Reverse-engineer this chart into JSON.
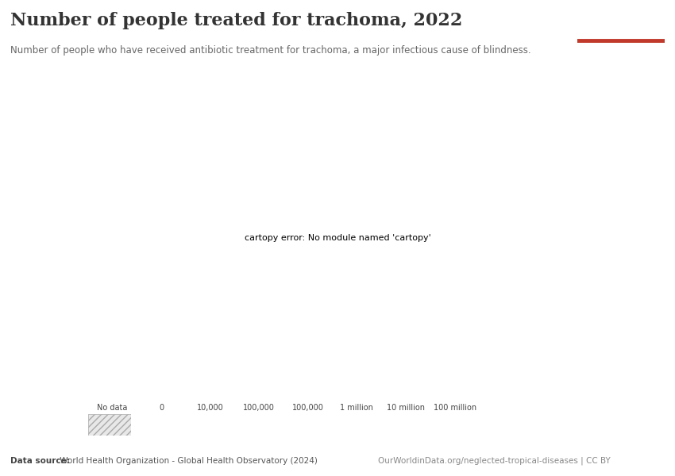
{
  "title": "Number of people treated for trachoma, 2022",
  "subtitle": "Number of people who have received antibiotic treatment for trachoma, a major infectious cause of blindness.",
  "datasource_bold": "Data source:",
  "datasource_rest": " World Health Organization - Global Health Observatory (2024)",
  "url": "OurWorldinData.org/neglected-tropical-diseases | CC BY",
  "owid_box_color": "#1a3a5c",
  "owid_box_red": "#c0392b",
  "background_color": "#ffffff",
  "colorbar_labels": [
    "No data",
    "0",
    "10,000",
    "100,000",
    "100,000",
    "1 million",
    "10 million",
    "100 million"
  ],
  "colorbar_colors": [
    "#d3d3d3",
    "#f7fbce",
    "#d4ebb8",
    "#98d4c4",
    "#5bbcbe",
    "#3a90b5",
    "#25618f",
    "#15325e"
  ],
  "hatch_pattern": "////",
  "no_data_facecolor": "#e8e8e8",
  "no_data_edgecolor": "#bbbbbb",
  "ocean_color": "#ffffff",
  "land_edge_color": "#bbbbbb",
  "land_edge_width": 0.3,
  "country_colors": {
    "Ethiopia": "#15325e",
    "Chad": "#25618f",
    "Nigeria": "#25618f",
    "Niger": "#3a90b5",
    "Mali": "#3a90b5",
    "Sudan": "#3a90b5",
    "Burkina Faso": "#5bbcbe",
    "Tanzania": "#25618f",
    "Kenya": "#3a90b5",
    "Uganda": "#3a90b5",
    "Malawi": "#5bbcbe",
    "Mozambique": "#3a90b5",
    "Zambia": "#5bbcbe",
    "Guinea": "#5bbcbe",
    "Ghana": "#98d4c4",
    "Cameroon": "#5bbcbe",
    "Central African Rep.": "#98d4c4",
    "S. Sudan": "#5bbcbe",
    "Eritrea": "#5bbcbe",
    "Djibouti": "#98d4c4",
    "Yemen": "#5bbcbe",
    "Laos": "#98d4c4",
    "Myanmar": "#98d4c4",
    "Dem. Rep. Congo": "#3a90b5",
    "Angola": "#98d4c4",
    "Zimbabwe": "#98d4c4",
    "Benin": "#5bbcbe",
    "Senegal": "#5bbcbe",
    "Gambia": "#98d4c4",
    "Liberia": "#98d4c4",
    "Sierra Leone": "#98d4c4",
    "Togo": "#98d4c4",
    "Comoros": "#d4ebb8",
    "Mexico": "#f7fbce",
    "Bolivia": "#f7fbce",
    "Brazil": "#f7fbce",
    "China": "#f7fbce",
    "India": "#f7fbce",
    "Australia": "#f7fbce",
    "Egypt": "#f7fbce",
    "Morocco": "#f7fbce",
    "Algeria": "#f7fbce",
    "Tunisia": "#f7fbce",
    "Libya": "#f7fbce",
    "Mauritania": "#f7fbce",
    "Pakistan": "#f7fbce",
    "Afghanistan": "#f7fbce",
    "Indonesia": "#f7fbce",
    "Philippines": "#f7fbce",
    "Vietnam": "#f7fbce",
    "Thailand": "#f7fbce",
    "Cambodia": "#f7fbce",
    "Papua New Guinea": "#f7fbce",
    "Madagascar": "#f7fbce",
    "Somalia": "#f7fbce",
    "South Africa": "#f7fbce",
    "Namibia": "#f7fbce",
    "Botswana": "#f7fbce",
    "Congo": "#f7fbce",
    "Gabon": "#f7fbce",
    "Eq. Guinea": "#f7fbce",
    "Rwanda": "#f7fbce",
    "Burundi": "#f7fbce",
    "Lesotho": "#f7fbce",
    "Swaziland": "#f7fbce",
    "eSwatini": "#f7fbce",
    "Ivory Coast": "#f7fbce",
    "Guinea-Bissau": "#f7fbce",
    "Cape Verde": "#f7fbce",
    "Mauritius": "#f7fbce",
    "Seychelles": "#f7fbce",
    "Colombia": "#f7fbce",
    "Venezuela": "#f7fbce",
    "Peru": "#f7fbce",
    "Ecuador": "#f7fbce",
    "Argentina": "#f7fbce",
    "Chile": "#f7fbce",
    "Paraguay": "#f7fbce",
    "Uruguay": "#f7fbce",
    "Guyana": "#f7fbce",
    "Suriname": "#f7fbce",
    "Panama": "#f7fbce",
    "Costa Rica": "#f7fbce",
    "Nicaragua": "#f7fbce",
    "Honduras": "#f7fbce",
    "El Salvador": "#f7fbce",
    "Guatemala": "#f7fbce",
    "Belize": "#f7fbce",
    "Cuba": "#f7fbce",
    "Haiti": "#f7fbce",
    "Dominican Rep.": "#f7fbce",
    "Jamaica": "#f7fbce",
    "Iran": "#f7fbce",
    "Iraq": "#f7fbce",
    "Saudi Arabia": "#f7fbce",
    "Oman": "#f7fbce",
    "UAE": "#f7fbce",
    "Kuwait": "#f7fbce",
    "Qatar": "#f7fbce",
    "Bahrain": "#f7fbce",
    "Jordan": "#f7fbce",
    "Israel": "#f7fbce",
    "Lebanon": "#f7fbce",
    "Syria": "#f7fbce",
    "Turkey": "#f7fbce",
    "Bangladesh": "#f7fbce",
    "Sri Lanka": "#f7fbce",
    "Nepal": "#f7fbce",
    "Bhutan": "#f7fbce",
    "Mongolia": "#f7fbce",
    "North Korea": "#f7fbce",
    "South Korea": "#f7fbce",
    "Japan": "#f7fbce",
    "Taiwan": "#f7fbce",
    "Malaysia": "#f7fbce",
    "Singapore": "#f7fbce",
    "Brunei": "#f7fbce",
    "Timor-Leste": "#f7fbce",
    "New Zealand": "#f7fbce",
    "Kazakhstan": "#f7fbce",
    "Uzbekistan": "#f7fbce",
    "Turkmenistan": "#f7fbce",
    "Kyrgyzstan": "#f7fbce",
    "Tajikistan": "#f7fbce",
    "Georgia": "#f7fbce",
    "Armenia": "#f7fbce",
    "Azerbaijan": "#f7fbce",
    "Russia": "#f7fbce",
    "Ukraine": "#f7fbce",
    "Belarus": "#f7fbce",
    "Poland": "#f7fbce",
    "Germany": "#f7fbce",
    "France": "#f7fbce",
    "Spain": "#f7fbce",
    "Portugal": "#f7fbce",
    "Italy": "#f7fbce",
    "United Kingdom": "#f7fbce",
    "Sweden": "#f7fbce",
    "Norway": "#f7fbce",
    "Finland": "#f7fbce",
    "Denmark": "#f7fbce",
    "Netherlands": "#f7fbce",
    "Belgium": "#f7fbce",
    "Switzerland": "#f7fbce",
    "Austria": "#f7fbce",
    "Czech Rep.": "#f7fbce",
    "Slovakia": "#f7fbce",
    "Hungary": "#f7fbce",
    "Romania": "#f7fbce",
    "Bulgaria": "#f7fbce",
    "Serbia": "#f7fbce",
    "Croatia": "#f7fbce",
    "Bosnia and Herz.": "#f7fbce",
    "Albania": "#f7fbce",
    "North Macedonia": "#f7fbce",
    "Greece": "#f7fbce",
    "Canada": "#f7fbce",
    "United States of America": "#f7fbce"
  },
  "fig_width": 8.5,
  "fig_height": 6.0
}
